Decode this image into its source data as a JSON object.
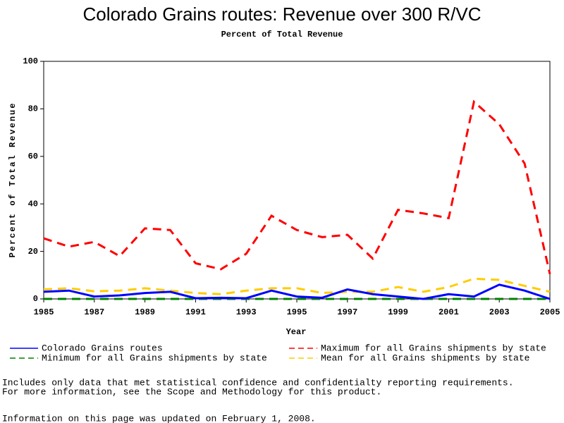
{
  "chart_data": {
    "type": "line",
    "title": "Colorado Grains routes: Revenue over 300 R/VC",
    "subtitle": "Percent of Total Revenue",
    "xlabel": "Year",
    "ylabel": "Percent of Total Revenue",
    "x": [
      1985,
      1986,
      1987,
      1988,
      1989,
      1990,
      1991,
      1992,
      1993,
      1994,
      1995,
      1996,
      1997,
      1998,
      1999,
      2000,
      2001,
      2002,
      2003,
      2004,
      2005
    ],
    "series": [
      {
        "name": "Colorado Grains routes",
        "color": "#0000ff",
        "style": "solid",
        "values": [
          3,
          3.5,
          1,
          1.5,
          2.5,
          3,
          0.3,
          0.5,
          0.3,
          3.5,
          1,
          0.5,
          4,
          2,
          1,
          0,
          2,
          1,
          6,
          3.5,
          0
        ]
      },
      {
        "name": "Maximum for all Grains shipments by state",
        "color": "#ff0000",
        "style": "dashed",
        "values": [
          25.5,
          22,
          24,
          18,
          29.7,
          29,
          15,
          12.5,
          19,
          35,
          29,
          26,
          27,
          17,
          37.5,
          36,
          34,
          83,
          73.5,
          57,
          10.5
        ]
      },
      {
        "name": "Minimum for all Grains shipments by state",
        "color": "#008000",
        "style": "dashed",
        "values": [
          0,
          0,
          0,
          0,
          0,
          0,
          0,
          0,
          0,
          0,
          0,
          0,
          0,
          0,
          0,
          0,
          0,
          0,
          0,
          0,
          0
        ]
      },
      {
        "name": "Mean for all Grains shipments by state",
        "color": "#ffcc00",
        "style": "dashed",
        "values": [
          4,
          4.5,
          3.2,
          3.5,
          4.5,
          3.5,
          2.5,
          2,
          3.5,
          4.5,
          4.5,
          2.5,
          3,
          3,
          5,
          3,
          5,
          8.5,
          8,
          5.5,
          3
        ]
      }
    ],
    "xlim": [
      1985,
      2005
    ],
    "xticks": [
      1985,
      1987,
      1989,
      1991,
      1993,
      1995,
      1997,
      1999,
      2001,
      2003,
      2005
    ],
    "ylim": [
      0,
      100
    ],
    "yticks": [
      0,
      20,
      40,
      60,
      80,
      100
    ],
    "notes": [
      "Includes only data that met statistical confidence and confidentialty reporting requirements.",
      "For more information, see the Scope and Methodology for this product.",
      "Information on this page was updated on February 1, 2008."
    ]
  }
}
